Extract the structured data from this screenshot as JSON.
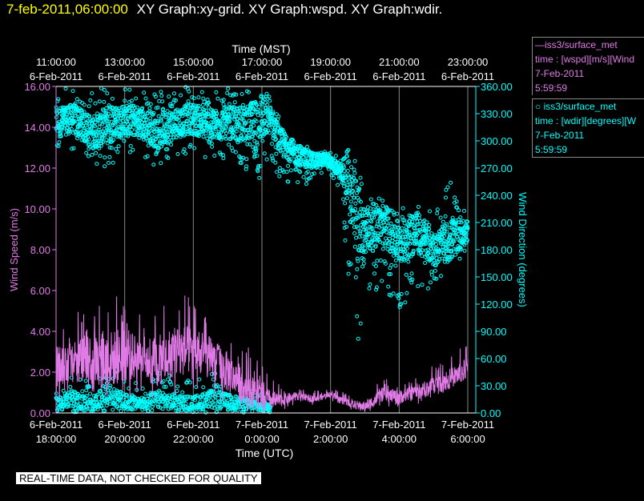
{
  "header": {
    "date_stamp": "7-feb-2011,06:00:00",
    "graph_titles": "XY Graph:xy-grid.  XY Graph:wspd.  XY Graph:wdir."
  },
  "legend": {
    "wspd": {
      "line1": "iss3/surface_met",
      "line2": "time : [wspd][m/s][Wind",
      "line3": "7-Feb-2011",
      "line4": "5:59:59"
    },
    "wdir": {
      "line1": "iss3/surface_met",
      "line2": "time : [wdir][degrees][W",
      "line3": "7-Feb-2011",
      "line4": "5:59:59"
    }
  },
  "notice": "REAL-TIME DATA, NOT CHECKED FOR QUALITY",
  "colors": {
    "wspd": "#e07ae6",
    "wdir": "#00ffff",
    "axis": "#ffffff",
    "grid": "#888888",
    "highlight": "#ffff00"
  },
  "chart_data": {
    "type": "line",
    "xlabel_top": "Time (MST)",
    "xlabel_bottom": "Time (UTC)",
    "ylabel_left": "Wind Speed (m/s)",
    "ylabel_right": "Wind Direction (degrees)",
    "x_range_utc_hours": [
      18,
      30
    ],
    "x_ticks_top": [
      {
        "x": 18,
        "time": "11:00:00",
        "date": "6-Feb-2011"
      },
      {
        "x": 20,
        "time": "13:00:00",
        "date": "6-Feb-2011"
      },
      {
        "x": 22,
        "time": "15:00:00",
        "date": "6-Feb-2011"
      },
      {
        "x": 24,
        "time": "17:00:00",
        "date": "6-Feb-2011"
      },
      {
        "x": 26,
        "time": "19:00:00",
        "date": "6-Feb-2011"
      },
      {
        "x": 28,
        "time": "21:00:00",
        "date": "6-Feb-2011"
      },
      {
        "x": 30,
        "time": "23:00:00",
        "date": "6-Feb-2011"
      }
    ],
    "x_ticks_bottom": [
      {
        "x": 18,
        "date": "6-Feb-2011",
        "time": "18:00:00"
      },
      {
        "x": 20,
        "date": "6-Feb-2011",
        "time": "20:00:00"
      },
      {
        "x": 22,
        "date": "6-Feb-2011",
        "time": "22:00:00"
      },
      {
        "x": 24,
        "date": "7-Feb-2011",
        "time": "0:00:00"
      },
      {
        "x": 26,
        "date": "7-Feb-2011",
        "time": "2:00:00"
      },
      {
        "x": 28,
        "date": "7-Feb-2011",
        "time": "4:00:00"
      },
      {
        "x": 30,
        "date": "7-Feb-2011",
        "time": "6:00:00"
      }
    ],
    "y_left_range": [
      0,
      16
    ],
    "y_left_ticks": [
      "0.00",
      "2.00",
      "4.00",
      "6.00",
      "8.00",
      "10.00",
      "12.00",
      "14.00",
      "16.00"
    ],
    "y_right_range": [
      0,
      360
    ],
    "y_right_ticks": [
      "0.00",
      "30.00",
      "60.00",
      "90.00",
      "120.00",
      "150.00",
      "180.00",
      "210.00",
      "240.00",
      "270.00",
      "300.00",
      "330.00",
      "360.00"
    ],
    "grid": true,
    "series": [
      {
        "name": "iss3/surface_met",
        "variable": "wspd",
        "axis": "left",
        "style": "line",
        "x": [
          18,
          18.5,
          19,
          19.5,
          20,
          20.5,
          21,
          21.5,
          22,
          22.5,
          23,
          23.5,
          24,
          24.5,
          25,
          25.5,
          26,
          26.5,
          27,
          27.5,
          28,
          28.5,
          29,
          29.5,
          30
        ],
        "y_mean": [
          2.3,
          2.6,
          2.7,
          2.6,
          2.8,
          2.7,
          2.6,
          3.0,
          3.1,
          2.7,
          2.0,
          1.3,
          0.7,
          0.6,
          0.8,
          0.7,
          0.9,
          0.5,
          0.3,
          0.9,
          0.8,
          1.0,
          1.3,
          1.7,
          2.2
        ],
        "y_max": [
          4.5,
          5.0,
          5.5,
          6.3,
          5.8,
          4.8,
          5.2,
          6.4,
          5.5,
          4.8,
          4.3,
          3.6,
          2.5,
          1.4,
          1.3,
          1.1,
          1.2,
          1.0,
          0.9,
          1.7,
          1.6,
          1.8,
          2.5,
          2.9,
          3.4
        ],
        "y_min": [
          0.3,
          0.6,
          0.8,
          0.5,
          0.7,
          0.8,
          0.4,
          0.9,
          1.0,
          0.6,
          0.3,
          0.1,
          0.0,
          0.1,
          0.4,
          0.4,
          0.6,
          0.2,
          0.0,
          0.3,
          0.3,
          0.4,
          0.6,
          0.9,
          1.2
        ]
      },
      {
        "name": "iss3/surface_met",
        "variable": "wdir",
        "axis": "right",
        "style": "scatter",
        "upper_band": {
          "x": [
            18,
            18.5,
            19,
            19.5,
            20,
            20.5,
            21,
            21.5,
            22,
            22.5,
            23,
            23.5,
            24,
            24.25,
            24.5,
            25,
            25.5,
            25.9,
            26.3,
            26.5,
            26.75,
            27,
            27.5,
            28,
            28.5,
            29,
            29.5,
            30
          ],
          "y_mean": [
            320,
            325,
            310,
            315,
            325,
            320,
            310,
            320,
            325,
            315,
            320,
            318,
            325,
            325,
            300,
            285,
            278,
            280,
            265,
            265,
            210,
            200,
            210,
            190,
            200,
            180,
            190,
            200
          ],
          "y_max": [
            355,
            360,
            355,
            360,
            360,
            358,
            355,
            360,
            360,
            356,
            358,
            355,
            360,
            350,
            330,
            300,
            290,
            290,
            280,
            290,
            285,
            250,
            240,
            225,
            235,
            220,
            260,
            225
          ],
          "y_min": [
            280,
            290,
            275,
            270,
            285,
            280,
            270,
            285,
            285,
            275,
            280,
            270,
            250,
            280,
            260,
            250,
            250,
            265,
            245,
            150,
            60,
            120,
            140,
            110,
            130,
            140,
            160,
            175
          ]
        },
        "lower_band": {
          "x": [
            18,
            18.5,
            19,
            19.5,
            20,
            20.5,
            21,
            21.5,
            22,
            22.5,
            23,
            23.5,
            24.25
          ],
          "y_mean": [
            10,
            15,
            8,
            20,
            12,
            10,
            15,
            12,
            10,
            15,
            12,
            10,
            5
          ],
          "y_max": [
            30,
            45,
            35,
            50,
            40,
            30,
            45,
            40,
            35,
            45,
            40,
            30,
            20
          ],
          "y_min": [
            0,
            0,
            0,
            0,
            0,
            0,
            0,
            0,
            0,
            0,
            0,
            0,
            0
          ]
        }
      }
    ]
  }
}
